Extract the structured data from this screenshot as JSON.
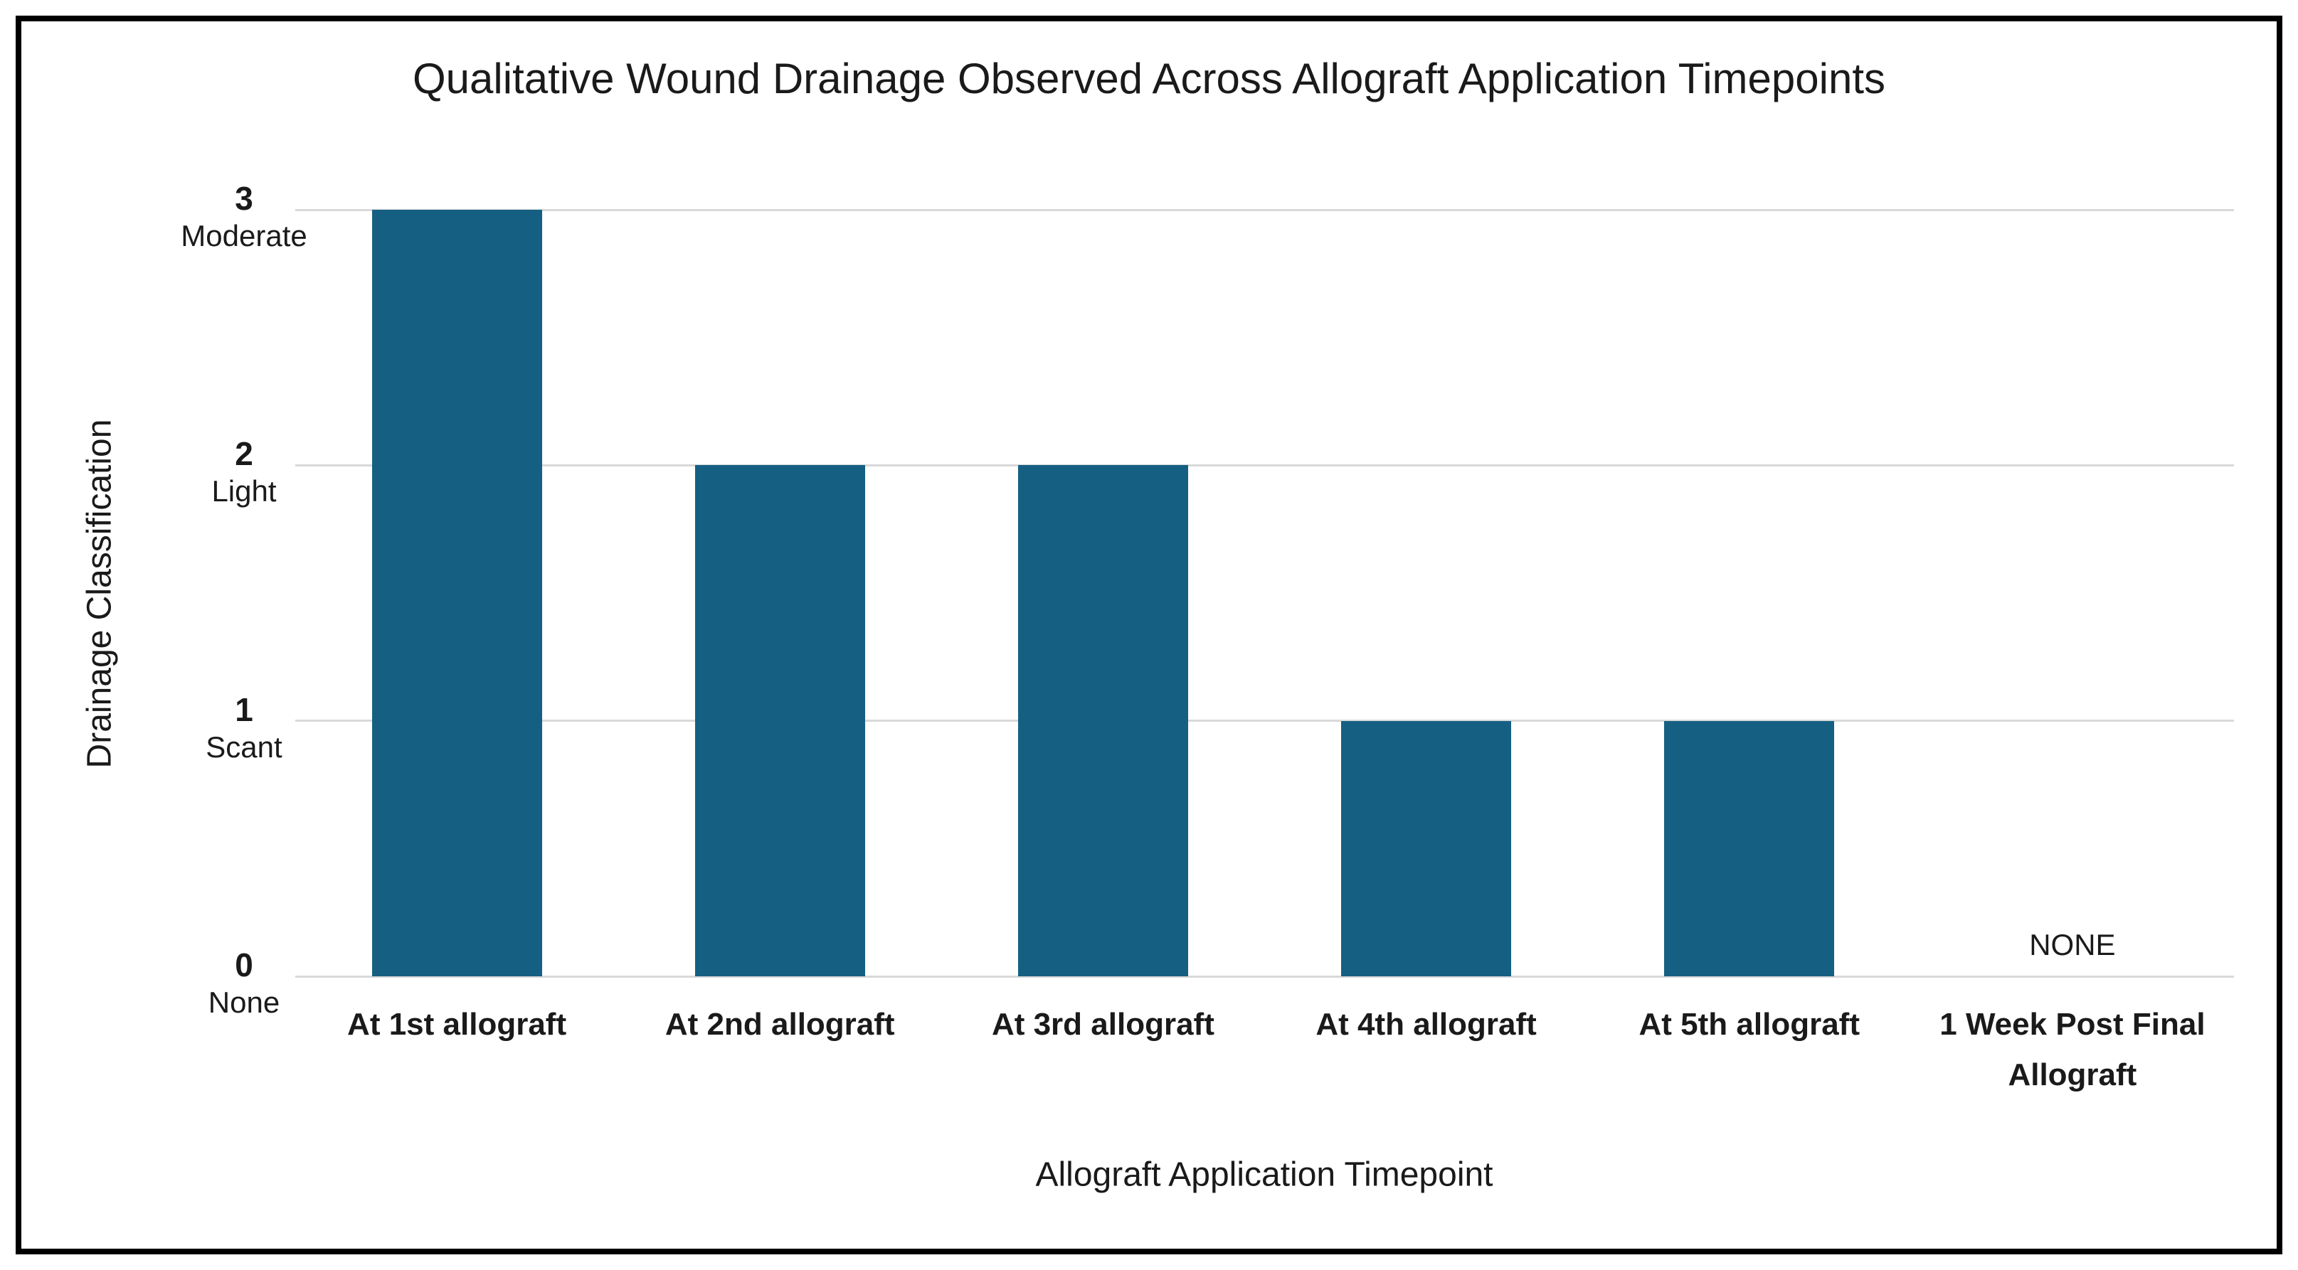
{
  "window": {
    "background": "#FFFFFF",
    "border_color": "#000000"
  },
  "chart_data": {
    "type": "bar",
    "title": "Qualitative Wound Drainage Observed Across Allograft Application Timepoints",
    "xlabel": "Allograft Application Timepoint",
    "ylabel": "Drainage Classification",
    "categories": [
      "At 1st allograft",
      "At 2nd allograft",
      "At 3rd allograft",
      "At 4th allograft",
      "At 5th allograft",
      "1 Week Post Final Allograft"
    ],
    "values": [
      3,
      2,
      2,
      1,
      1,
      0
    ],
    "zero_bar_annotation": "NONE",
    "ylim": [
      0,
      3
    ],
    "yticks": [
      {
        "value": 3,
        "number": "3",
        "label": "Moderate"
      },
      {
        "value": 2,
        "number": "2",
        "label": "Light"
      },
      {
        "value": 1,
        "number": "1",
        "label": "Scant"
      },
      {
        "value": 0,
        "number": "0",
        "label": "None"
      }
    ],
    "grid": true,
    "legend_position": "none",
    "bar_color": "#156082",
    "gridline_color": "#D9D9D9",
    "text_color": "#1A1A1A"
  }
}
